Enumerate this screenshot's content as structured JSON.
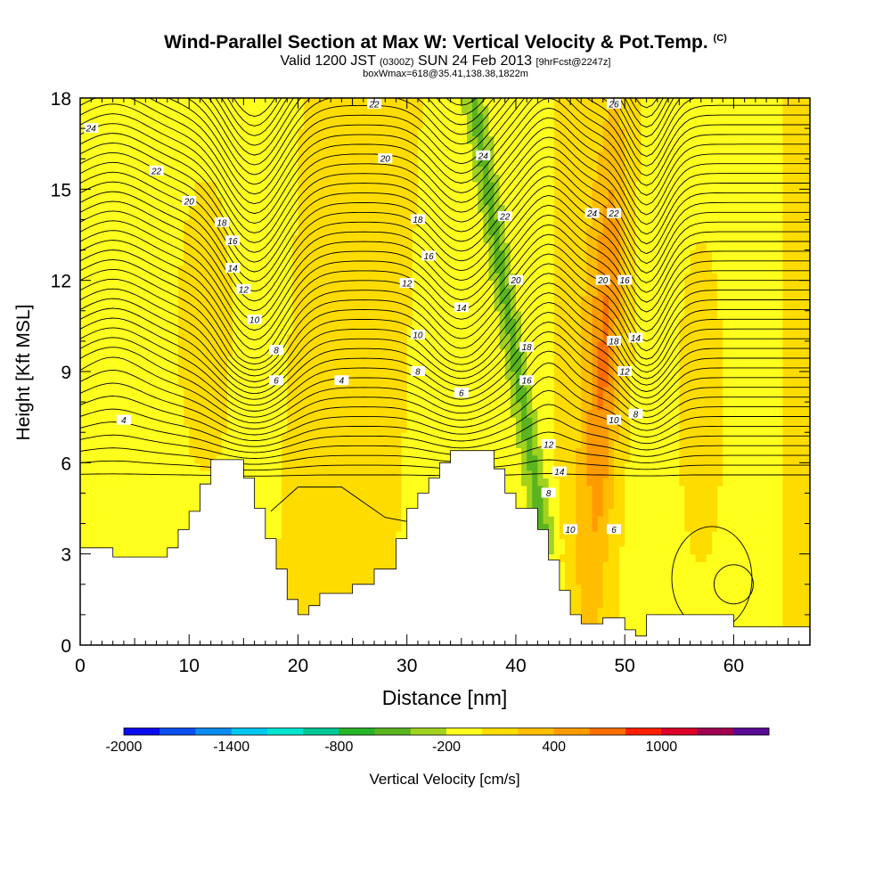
{
  "header": {
    "title": "Wind-Parallel Section at Max W: Vertical Velocity & Pot.Temp.",
    "title_mark": "(C)",
    "valid_prefix": "Valid 1200 JST",
    "valid_utc": "(0300Z)",
    "valid_date": "SUN 24 Feb 2013",
    "forecast": "[9hrFcst@2247z]",
    "box_info": "boxWmax=618@35.41,138.38,1822m"
  },
  "chart_data": {
    "type": "heatmap",
    "xlabel": "Distance [nm]",
    "ylabel": "Height [Kft MSL]",
    "xlim": [
      0,
      67
    ],
    "ylim": [
      0,
      18
    ],
    "x_ticks": [
      0,
      10,
      20,
      30,
      40,
      50,
      60
    ],
    "y_ticks": [
      0,
      3,
      6,
      9,
      12,
      15,
      18
    ],
    "colorbar": {
      "label": "Vertical Velocity [cm/s]",
      "tick_labels": [
        "-2000",
        "-1400",
        "-800",
        "-200",
        "400",
        "1000"
      ],
      "tick_values": [
        -2000,
        -1400,
        -800,
        -200,
        400,
        1000
      ],
      "levels": [
        -2000,
        -1800,
        -1600,
        -1400,
        -1200,
        -1000,
        -800,
        -600,
        -400,
        -200,
        0,
        200,
        400,
        600,
        800,
        1000,
        1200,
        1400
      ],
      "colors": [
        "#0a0af0",
        "#0a4ef0",
        "#0a8cf0",
        "#00c8f0",
        "#00e6d2",
        "#00c896",
        "#28b428",
        "#5ab41e",
        "#a0d21e",
        "#ffff1e",
        "#ffdc00",
        "#ffbe00",
        "#ff9b00",
        "#ff6e00",
        "#ff1e00",
        "#dc0028",
        "#a00050",
        "#5a0a96"
      ]
    },
    "terrain": [
      [
        0,
        3.2
      ],
      [
        3,
        3.2
      ],
      [
        3,
        2.9
      ],
      [
        5,
        2.9
      ],
      [
        8,
        2.9
      ],
      [
        8,
        3.2
      ],
      [
        9,
        3.2
      ],
      [
        9,
        3.8
      ],
      [
        10,
        3.8
      ],
      [
        10,
        4.4
      ],
      [
        11,
        4.4
      ],
      [
        11,
        5.3
      ],
      [
        12,
        5.3
      ],
      [
        12,
        6.1
      ],
      [
        15,
        6.1
      ],
      [
        15,
        5.5
      ],
      [
        16,
        5.5
      ],
      [
        16,
        4.5
      ],
      [
        17,
        4.5
      ],
      [
        17,
        3.5
      ],
      [
        18,
        3.5
      ],
      [
        18,
        2.5
      ],
      [
        19,
        2.5
      ],
      [
        19,
        1.5
      ],
      [
        20,
        1.5
      ],
      [
        20,
        1.0
      ],
      [
        21,
        1.0
      ],
      [
        21,
        1.3
      ],
      [
        22,
        1.3
      ],
      [
        22,
        1.7
      ],
      [
        25,
        1.7
      ],
      [
        25,
        2.0
      ],
      [
        27,
        2.0
      ],
      [
        27,
        2.5
      ],
      [
        29,
        2.5
      ],
      [
        29,
        3.5
      ],
      [
        30,
        3.5
      ],
      [
        30,
        4.5
      ],
      [
        31,
        4.5
      ],
      [
        31,
        5.0
      ],
      [
        32,
        5.0
      ],
      [
        32,
        5.5
      ],
      [
        33,
        5.5
      ],
      [
        33,
        6.0
      ],
      [
        34,
        6.0
      ],
      [
        34,
        6.4
      ],
      [
        38,
        6.4
      ],
      [
        38,
        5.8
      ],
      [
        39,
        5.8
      ],
      [
        39,
        5.0
      ],
      [
        40,
        5.0
      ],
      [
        40,
        4.5
      ],
      [
        42,
        4.5
      ],
      [
        42,
        3.8
      ],
      [
        43,
        3.8
      ],
      [
        43,
        2.8
      ],
      [
        44,
        2.8
      ],
      [
        44,
        1.8
      ],
      [
        45,
        1.8
      ],
      [
        45,
        1.0
      ],
      [
        46,
        1.0
      ],
      [
        46,
        0.7
      ],
      [
        48,
        0.7
      ],
      [
        48,
        0.9
      ],
      [
        50,
        0.9
      ],
      [
        50,
        0.5
      ],
      [
        51,
        0.5
      ],
      [
        51,
        0.3
      ],
      [
        52,
        0.3
      ],
      [
        52,
        1.0
      ],
      [
        55,
        1.0
      ],
      [
        55,
        1.0
      ],
      [
        60,
        1.0
      ],
      [
        60,
        0.6
      ],
      [
        67,
        0.6
      ]
    ],
    "contour_labels": [
      {
        "x": 1,
        "y": 17.0,
        "v": "24"
      },
      {
        "x": 7,
        "y": 15.6,
        "v": "22"
      },
      {
        "x": 10,
        "y": 14.6,
        "v": "20"
      },
      {
        "x": 13,
        "y": 13.9,
        "v": "18"
      },
      {
        "x": 14,
        "y": 13.3,
        "v": "16"
      },
      {
        "x": 14,
        "y": 12.4,
        "v": "14"
      },
      {
        "x": 15,
        "y": 11.7,
        "v": "12"
      },
      {
        "x": 16,
        "y": 10.7,
        "v": "10"
      },
      {
        "x": 18,
        "y": 9.7,
        "v": "8"
      },
      {
        "x": 18,
        "y": 8.7,
        "v": "6"
      },
      {
        "x": 24,
        "y": 8.7,
        "v": "4"
      },
      {
        "x": 4,
        "y": 7.4,
        "v": "4"
      },
      {
        "x": 27,
        "y": 17.8,
        "v": "22"
      },
      {
        "x": 28,
        "y": 16.0,
        "v": "20"
      },
      {
        "x": 31,
        "y": 14.0,
        "v": "18"
      },
      {
        "x": 32,
        "y": 12.8,
        "v": "16"
      },
      {
        "x": 30,
        "y": 11.9,
        "v": "12"
      },
      {
        "x": 35,
        "y": 11.1,
        "v": "14"
      },
      {
        "x": 31,
        "y": 10.2,
        "v": "10"
      },
      {
        "x": 31,
        "y": 9.0,
        "v": "8"
      },
      {
        "x": 35,
        "y": 8.3,
        "v": "6"
      },
      {
        "x": 37,
        "y": 16.1,
        "v": "24"
      },
      {
        "x": 39,
        "y": 14.1,
        "v": "22"
      },
      {
        "x": 40,
        "y": 12.0,
        "v": "20"
      },
      {
        "x": 41,
        "y": 9.8,
        "v": "18"
      },
      {
        "x": 41,
        "y": 8.7,
        "v": "16"
      },
      {
        "x": 43,
        "y": 6.6,
        "v": "12"
      },
      {
        "x": 44,
        "y": 5.7,
        "v": "14"
      },
      {
        "x": 43,
        "y": 5.0,
        "v": "8"
      },
      {
        "x": 45,
        "y": 3.8,
        "v": "10"
      },
      {
        "x": 49,
        "y": 17.8,
        "v": "26"
      },
      {
        "x": 47,
        "y": 14.2,
        "v": "24"
      },
      {
        "x": 49,
        "y": 14.2,
        "v": "22"
      },
      {
        "x": 48,
        "y": 12.0,
        "v": "20"
      },
      {
        "x": 50,
        "y": 12.0,
        "v": "16"
      },
      {
        "x": 49,
        "y": 10.0,
        "v": "18"
      },
      {
        "x": 51,
        "y": 10.1,
        "v": "14"
      },
      {
        "x": 50,
        "y": 9.0,
        "v": "12"
      },
      {
        "x": 49,
        "y": 7.4,
        "v": "10"
      },
      {
        "x": 51,
        "y": 7.6,
        "v": "8"
      },
      {
        "x": 49,
        "y": 3.8,
        "v": "6"
      }
    ]
  }
}
